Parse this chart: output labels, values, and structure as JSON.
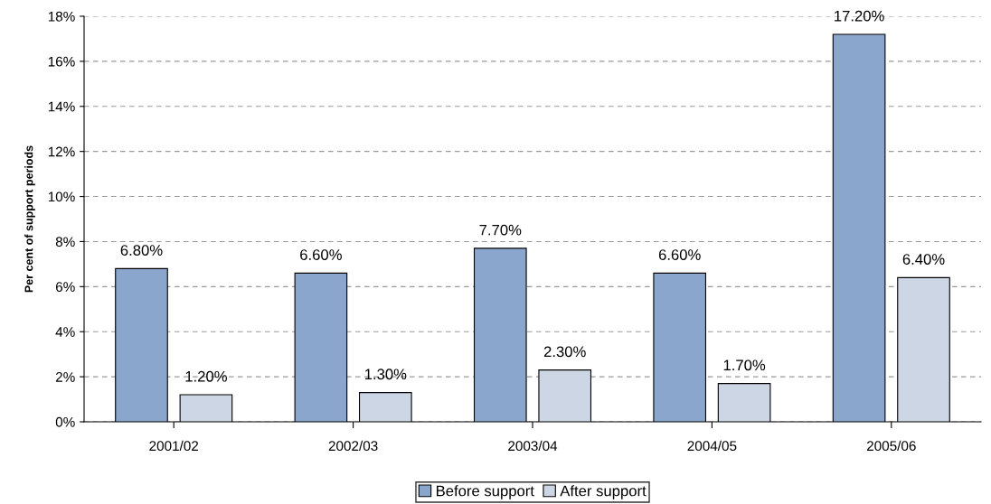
{
  "chart_data": {
    "type": "bar",
    "ylabel": "Per cent of support periods",
    "categories": [
      "2001/02",
      "2002/03",
      "2003/04",
      "2004/05",
      "2005/06"
    ],
    "series": [
      {
        "name": "Before support",
        "color": "#8aa6cd",
        "values": [
          6.8,
          6.6,
          7.7,
          6.6,
          17.2
        ],
        "value_labels": [
          "6.80%",
          "6.60%",
          "7.70%",
          "6.60%",
          "17.20%"
        ]
      },
      {
        "name": "After support",
        "color": "#ccd6e4",
        "values": [
          1.2,
          1.3,
          2.3,
          1.7,
          6.4
        ],
        "value_labels": [
          "1.20%",
          "1.30%",
          "2.30%",
          "1.70%",
          "6.40%"
        ]
      }
    ],
    "ylim": [
      0,
      18
    ],
    "yticks": [
      {
        "value": 0,
        "label": "0%"
      },
      {
        "value": 2,
        "label": "2%"
      },
      {
        "value": 4,
        "label": "4%"
      },
      {
        "value": 6,
        "label": "6%"
      },
      {
        "value": 8,
        "label": "8%"
      },
      {
        "value": 10,
        "label": "10%"
      },
      {
        "value": 12,
        "label": "12%"
      },
      {
        "value": 14,
        "label": "14%"
      },
      {
        "value": 16,
        "label": "16%"
      },
      {
        "value": 18,
        "label": "18%"
      }
    ],
    "grid": "y",
    "legend": "bottom"
  }
}
